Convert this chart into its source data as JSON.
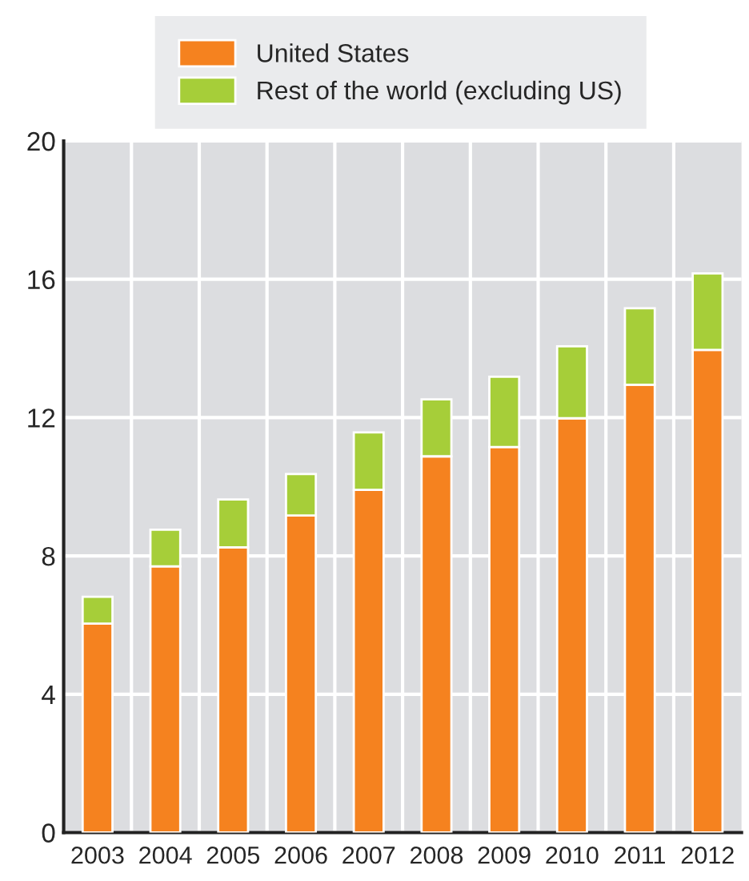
{
  "chart_data": {
    "type": "bar",
    "stacked": true,
    "categories": [
      "2003",
      "2004",
      "2005",
      "2006",
      "2007",
      "2008",
      "2009",
      "2010",
      "2011",
      "2012"
    ],
    "series": [
      {
        "name": "United States",
        "color": "#f5821f",
        "values": [
          6.04,
          7.7,
          8.25,
          9.17,
          9.91,
          10.88,
          11.15,
          11.98,
          12.95,
          13.96
        ]
      },
      {
        "name": "Rest of the world (excluding US)",
        "color": "#a6ce39",
        "values": [
          0.78,
          1.06,
          1.38,
          1.2,
          1.66,
          1.65,
          2.03,
          2.08,
          2.21,
          2.21
        ]
      }
    ],
    "ylim": [
      0,
      20
    ],
    "yticks": [
      0,
      4,
      8,
      12,
      16,
      20
    ],
    "grid": true,
    "legend": "top"
  }
}
